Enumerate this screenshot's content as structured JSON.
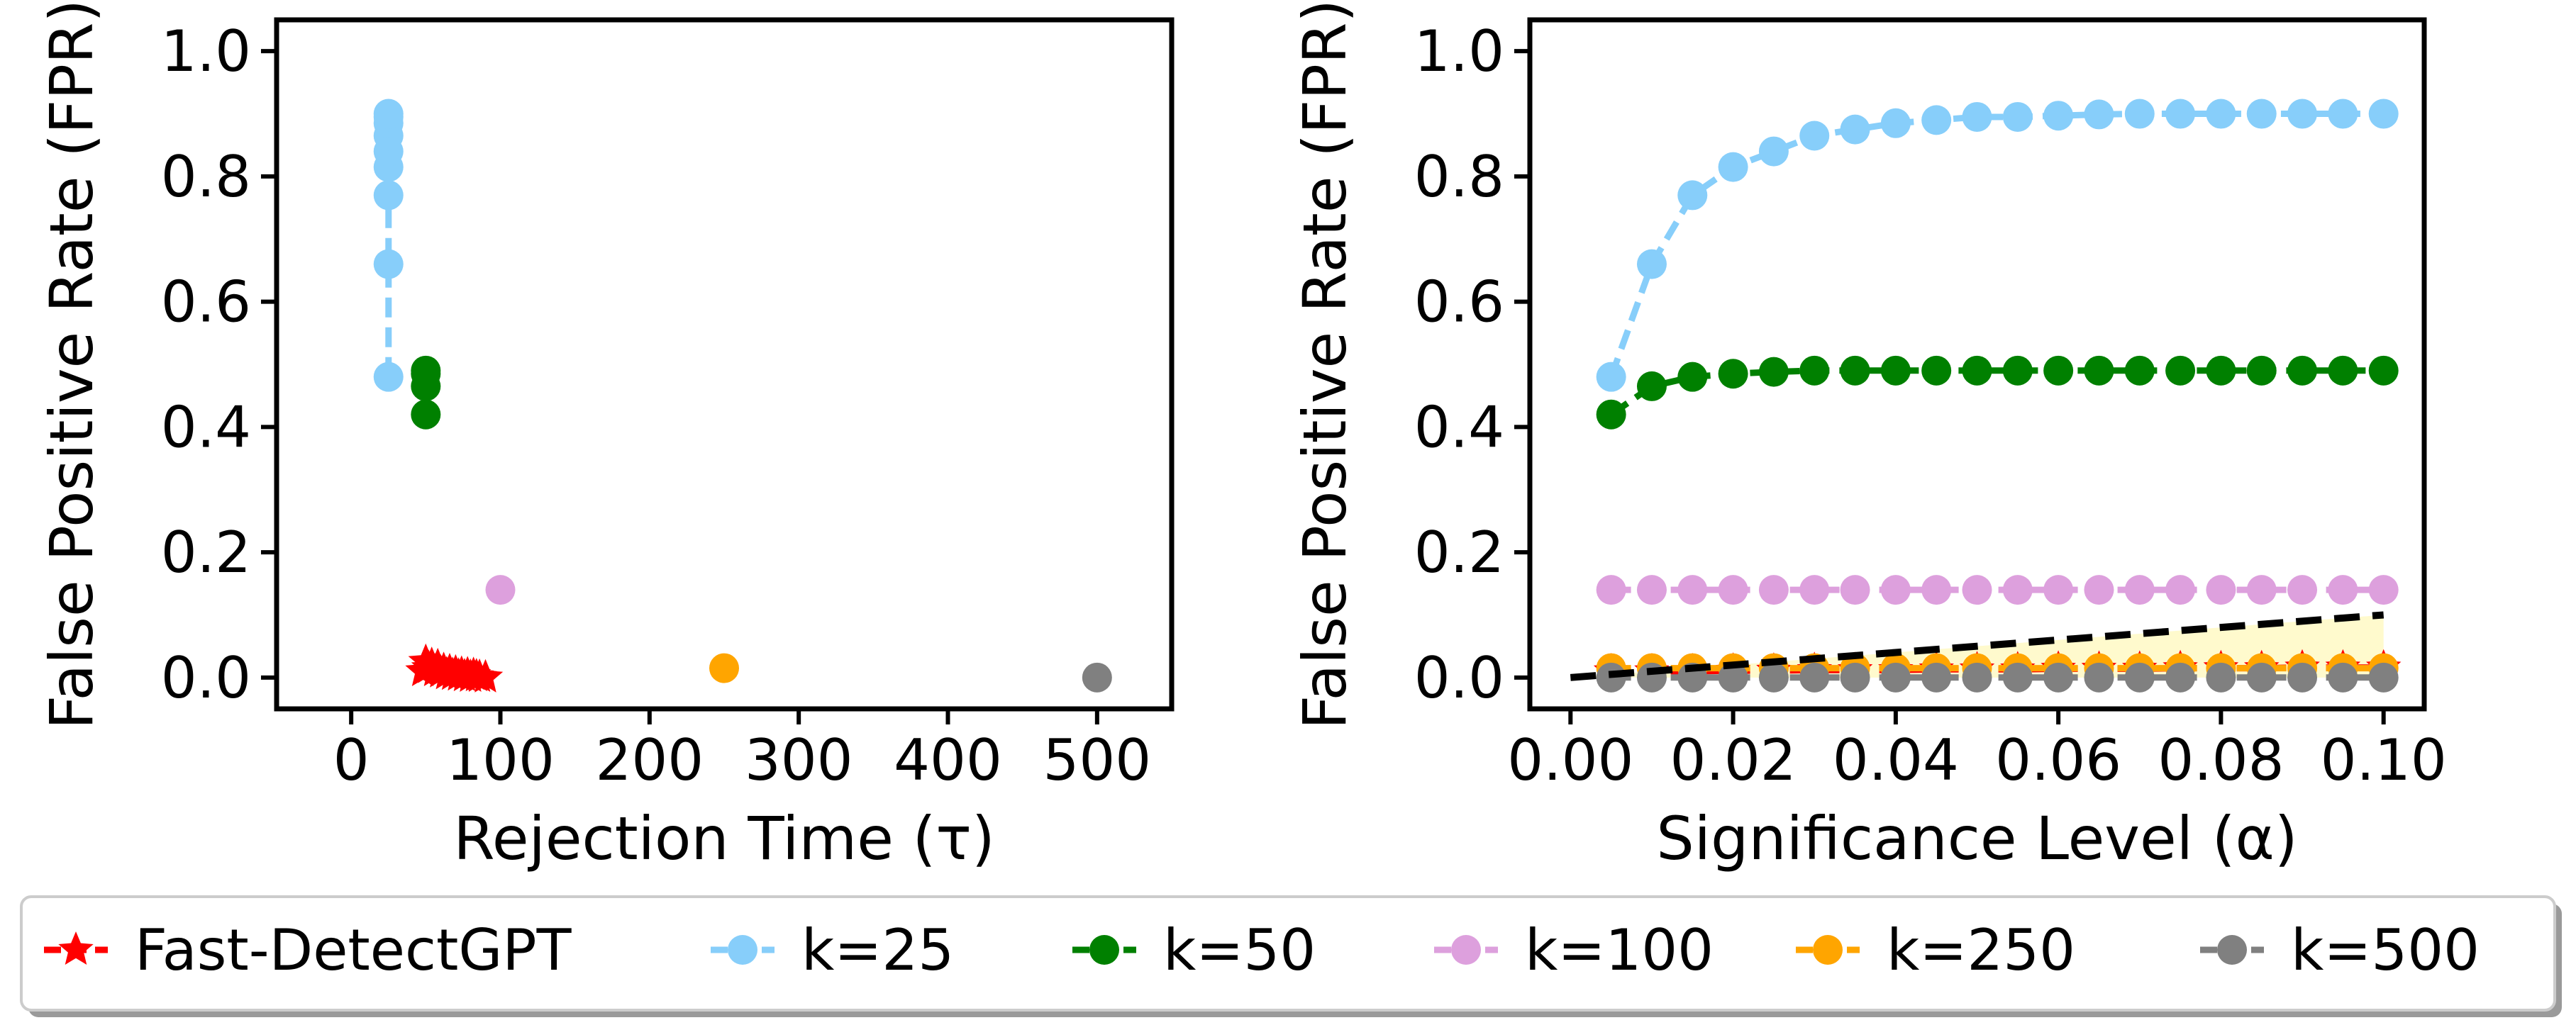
{
  "chart_data": [
    {
      "type": "scatter",
      "xlabel": "Rejection Time (τ)",
      "ylabel": "False Positive Rate (FPR)",
      "xlim": [
        -50,
        550
      ],
      "ylim": [
        -0.05,
        1.05
      ],
      "xticks": [
        0,
        100,
        200,
        300,
        400,
        500
      ],
      "xtick_labels": [
        "0",
        "100",
        "200",
        "300",
        "400",
        "500"
      ],
      "yticks": [
        0.0,
        0.2,
        0.4,
        0.6,
        0.8,
        1.0
      ],
      "ytick_labels": [
        "0.0",
        "0.2",
        "0.4",
        "0.6",
        "0.8",
        "1.0"
      ],
      "grid": false,
      "series": [
        {
          "name": "Fast-DetectGPT",
          "color": "#ff0000",
          "marker": "star",
          "linestyle": "dashed",
          "x": [
            48,
            50,
            52,
            54,
            56,
            58,
            60,
            62,
            64,
            66,
            68,
            70,
            72,
            74,
            76,
            78,
            80,
            82,
            84,
            86,
            90
          ],
          "y": [
            0.01,
            0.025,
            0.015,
            0.02,
            0.01,
            0.018,
            0.008,
            0.012,
            0.005,
            0.01,
            0.004,
            0.008,
            0.003,
            0.006,
            0.002,
            0.005,
            0.001,
            0.004,
            0.002,
            0.001,
            0.0
          ]
        },
        {
          "name": "k=25",
          "color": "#87cefa",
          "marker": "circle",
          "linestyle": "dashed",
          "x": [
            25,
            25,
            25,
            25,
            25,
            25,
            25,
            25,
            25
          ],
          "y": [
            0.48,
            0.66,
            0.77,
            0.815,
            0.84,
            0.865,
            0.885,
            0.895,
            0.9
          ]
        },
        {
          "name": "k=50",
          "color": "#008000",
          "marker": "circle",
          "linestyle": "dashed",
          "x": [
            50,
            50,
            50,
            50
          ],
          "y": [
            0.42,
            0.465,
            0.485,
            0.49
          ]
        },
        {
          "name": "k=100",
          "color": "#dda0dd",
          "marker": "circle",
          "linestyle": "dashed",
          "x": [
            100
          ],
          "y": [
            0.14
          ]
        },
        {
          "name": "k=250",
          "color": "#ffa500",
          "marker": "circle",
          "linestyle": "dashed",
          "x": [
            250
          ],
          "y": [
            0.015
          ]
        },
        {
          "name": "k=500",
          "color": "#808080",
          "marker": "circle",
          "linestyle": "dashed",
          "x": [
            500
          ],
          "y": [
            0.0
          ]
        }
      ]
    },
    {
      "type": "line",
      "xlabel": "Significance Level (α)",
      "ylabel": "False Positive Rate (FPR)",
      "xlim": [
        -0.005,
        0.105
      ],
      "ylim": [
        -0.05,
        1.05
      ],
      "xticks": [
        0.0,
        0.02,
        0.04,
        0.06,
        0.08,
        0.1
      ],
      "xtick_labels": [
        "0.00",
        "0.02",
        "0.04",
        "0.06",
        "0.08",
        "0.10"
      ],
      "yticks": [
        0.0,
        0.2,
        0.4,
        0.6,
        0.8,
        1.0
      ],
      "ytick_labels": [
        "0.0",
        "0.2",
        "0.4",
        "0.6",
        "0.8",
        "1.0"
      ],
      "grid": false,
      "x": [
        0.005,
        0.01,
        0.015,
        0.02,
        0.025,
        0.03,
        0.035,
        0.04,
        0.045,
        0.05,
        0.055,
        0.06,
        0.065,
        0.07,
        0.075,
        0.08,
        0.085,
        0.09,
        0.095,
        0.1
      ],
      "reference_line": {
        "x": [
          0.0,
          0.1
        ],
        "y": [
          0.0,
          0.1
        ],
        "color": "#000000",
        "style": "dashed",
        "fill_below": "#fffacd"
      },
      "series": [
        {
          "name": "Fast-DetectGPT",
          "color": "#ff0000",
          "marker": "star",
          "linestyle": "dashed",
          "values": [
            0.01,
            0.01,
            0.01,
            0.011,
            0.011,
            0.012,
            0.012,
            0.012,
            0.013,
            0.013,
            0.013,
            0.014,
            0.014,
            0.014,
            0.015,
            0.015,
            0.015,
            0.016,
            0.016,
            0.016
          ]
        },
        {
          "name": "k=25",
          "color": "#87cefa",
          "marker": "circle",
          "linestyle": "dashed",
          "values": [
            0.48,
            0.66,
            0.77,
            0.815,
            0.84,
            0.865,
            0.875,
            0.885,
            0.89,
            0.895,
            0.895,
            0.897,
            0.899,
            0.9,
            0.9,
            0.9,
            0.9,
            0.9,
            0.9,
            0.9
          ]
        },
        {
          "name": "k=50",
          "color": "#008000",
          "marker": "circle",
          "linestyle": "dashed",
          "values": [
            0.42,
            0.465,
            0.48,
            0.485,
            0.488,
            0.49,
            0.49,
            0.49,
            0.49,
            0.49,
            0.49,
            0.49,
            0.49,
            0.49,
            0.49,
            0.49,
            0.49,
            0.49,
            0.49,
            0.49
          ]
        },
        {
          "name": "k=100",
          "color": "#dda0dd",
          "marker": "circle",
          "linestyle": "dashed",
          "values": [
            0.14,
            0.14,
            0.14,
            0.14,
            0.14,
            0.14,
            0.14,
            0.14,
            0.14,
            0.14,
            0.14,
            0.14,
            0.14,
            0.14,
            0.14,
            0.14,
            0.14,
            0.14,
            0.14,
            0.14
          ]
        },
        {
          "name": "k=250",
          "color": "#ffa500",
          "marker": "circle",
          "linestyle": "dashed",
          "values": [
            0.015,
            0.015,
            0.015,
            0.015,
            0.015,
            0.015,
            0.015,
            0.015,
            0.015,
            0.015,
            0.015,
            0.015,
            0.015,
            0.015,
            0.015,
            0.015,
            0.015,
            0.015,
            0.015,
            0.015
          ]
        },
        {
          "name": "k=500",
          "color": "#808080",
          "marker": "circle",
          "linestyle": "dashed",
          "values": [
            0.0,
            0.0,
            0.0,
            0.0,
            0.0,
            0.0,
            0.0,
            0.0,
            0.0,
            0.0,
            0.0,
            0.0,
            0.0,
            0.0,
            0.0,
            0.0,
            0.0,
            0.0,
            0.0,
            0.0
          ]
        }
      ]
    }
  ],
  "legend": {
    "placement": "bottom",
    "items": [
      {
        "label": "Fast-DetectGPT",
        "color": "#ff0000",
        "marker": "star"
      },
      {
        "label": "k=25",
        "color": "#87cefa",
        "marker": "circle"
      },
      {
        "label": "k=50",
        "color": "#008000",
        "marker": "circle"
      },
      {
        "label": "k=100",
        "color": "#dda0dd",
        "marker": "circle"
      },
      {
        "label": "k=250",
        "color": "#ffa500",
        "marker": "circle"
      },
      {
        "label": "k=500",
        "color": "#808080",
        "marker": "circle"
      }
    ]
  }
}
